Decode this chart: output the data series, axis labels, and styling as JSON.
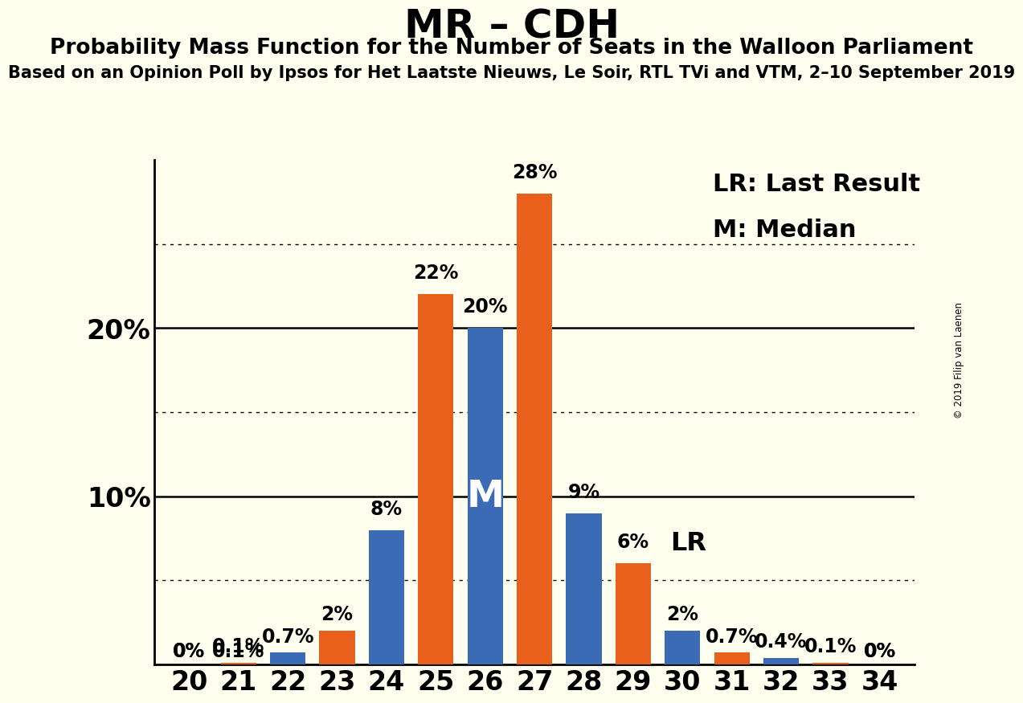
{
  "title": "MR – CDH",
  "subtitle1": "Probability Mass Function for the Number of Seats in the Walloon Parliament",
  "subtitle2": "Based on an Opinion Poll by Ipsos for Het Laatste Nieuws, Le Soir, RTL TVi and VTM, 2–10 September 2019",
  "copyright": "© 2019 Filip van Laenen",
  "background_color": "#FFFFF0",
  "orange_color": "#E8601C",
  "blue_color": "#3B6BB5",
  "seats": [
    20,
    21,
    22,
    23,
    24,
    25,
    26,
    27,
    28,
    29,
    30,
    31,
    32,
    33,
    34
  ],
  "orange_values": [
    0.0,
    0.1,
    0.0,
    2.0,
    0.0,
    22.0,
    0.0,
    28.0,
    0.0,
    6.0,
    0.0,
    0.7,
    0.0,
    0.1,
    0.0
  ],
  "blue_values": [
    0.0,
    0.0,
    0.7,
    0.0,
    8.0,
    0.0,
    20.0,
    0.0,
    9.0,
    0.0,
    2.0,
    0.0,
    0.4,
    0.0,
    0.0
  ],
  "bar_labels_orange": [
    "0%",
    "0.1%",
    "",
    "2%",
    "",
    "22%",
    "",
    "28%",
    "",
    "6%",
    "",
    "0.7%",
    "",
    "0.1%",
    ""
  ],
  "bar_labels_blue": [
    "0%",
    "",
    "0.7%",
    "",
    "8%",
    "",
    "20%",
    "",
    "9%",
    "",
    "2%",
    "",
    "0.4%",
    "",
    "0%"
  ],
  "median_seat": 26,
  "lr_seat": 29,
  "ylim": [
    0,
    30
  ],
  "dotted_lines": [
    5,
    15,
    25
  ],
  "solid_lines": [
    10,
    20
  ],
  "title_fontsize": 36,
  "subtitle1_fontsize": 19,
  "subtitle2_fontsize": 15,
  "axis_tick_fontsize": 24,
  "bar_label_fontsize": 17,
  "annotation_fontsize": 23,
  "legend_fontsize": 22,
  "median_label_fontsize": 34
}
